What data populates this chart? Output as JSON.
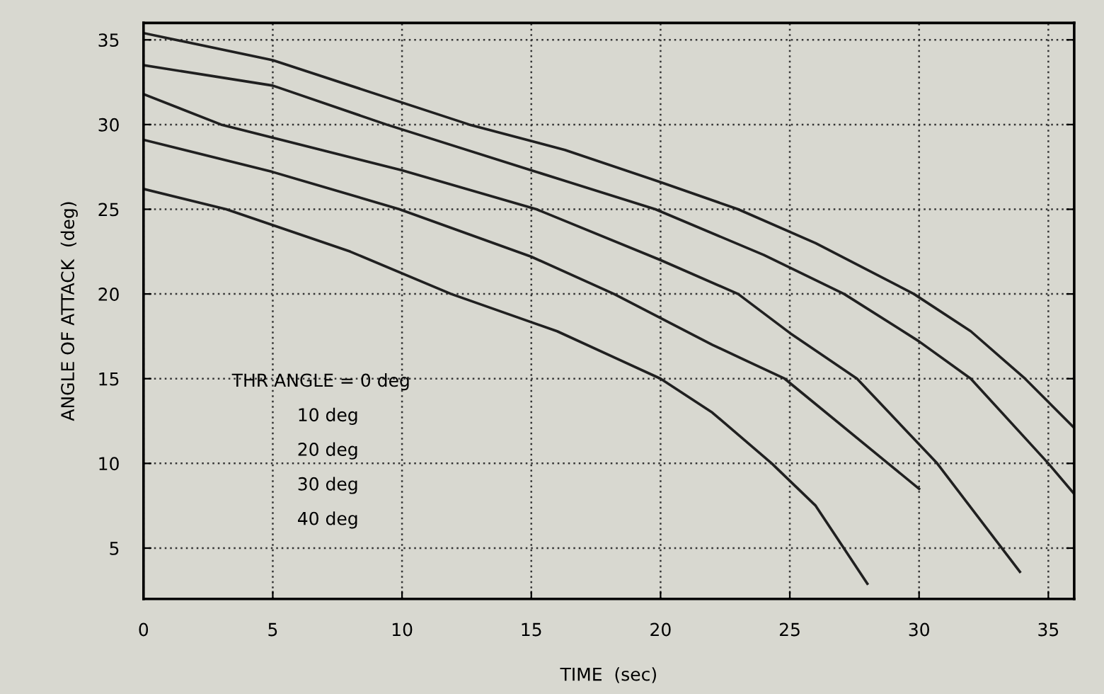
{
  "chart_data": {
    "type": "line",
    "xlabel": "TIME  (sec)",
    "ylabel": "ANGLE OF ATTACK  (deg)",
    "xlim": [
      0,
      36
    ],
    "ylim": [
      2,
      36
    ],
    "xticks": [
      0,
      5,
      10,
      15,
      20,
      25,
      30,
      35
    ],
    "yticks": [
      5,
      10,
      15,
      20,
      25,
      30,
      35
    ],
    "grid": true,
    "line_style": "solid",
    "marker": "none",
    "series": [
      {
        "color": "#202020",
        "x": [
          0,
          5,
          12.6,
          16.3,
          20,
          23,
          26,
          29.8,
          32,
          34.1,
          36
        ],
        "values": [
          35.4,
          33.8,
          30,
          28.5,
          26.6,
          25,
          23,
          20,
          17.8,
          15,
          12.1
        ]
      },
      {
        "color": "#202020",
        "x": [
          0,
          5,
          9.4,
          15,
          19.8,
          24,
          27.1,
          30,
          32,
          35,
          36
        ],
        "values": [
          33.5,
          32.3,
          30,
          27.3,
          25,
          22.3,
          20,
          17.2,
          15,
          10,
          8.2
        ]
      },
      {
        "color": "#202020",
        "x": [
          0,
          3,
          10,
          15.2,
          20,
          23,
          25,
          27.6,
          30.7,
          33.9
        ],
        "values": [
          31.8,
          30,
          27.3,
          25,
          22,
          20,
          17.7,
          15,
          10,
          3.6
        ]
      },
      {
        "color": "#202020",
        "x": [
          0,
          5,
          9.9,
          15,
          18.2,
          22,
          24.8,
          28.8,
          30
        ],
        "values": [
          29.1,
          27.2,
          25,
          22.2,
          20,
          17,
          15,
          10,
          8.5
        ]
      },
      {
        "color": "#202020",
        "x": [
          0,
          3.2,
          8,
          11.9,
          16,
          20,
          22,
          24.3,
          26,
          28
        ],
        "values": [
          26.2,
          25,
          22.5,
          20,
          17.8,
          15,
          13,
          10,
          7.5,
          2.9
        ]
      }
    ],
    "annotations": [
      "THR ANGLE = 0 deg",
      "10 deg",
      "20 deg",
      "30 deg",
      "40 deg"
    ]
  }
}
